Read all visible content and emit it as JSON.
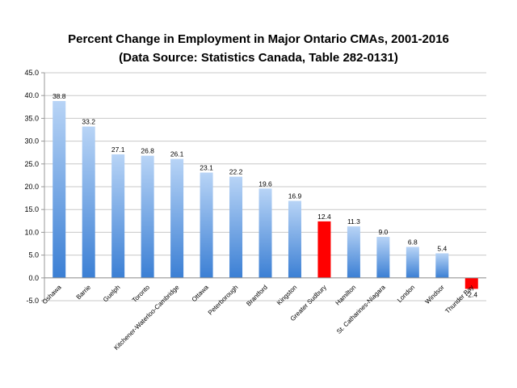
{
  "chart_data": {
    "type": "bar",
    "title": "Percent Change in Employment in Major Ontario CMAs, 2001-2016",
    "subtitle": "(Data Source: Statistics Canada, Table 282-0131)",
    "xlabel": "",
    "ylabel": "",
    "ylim": [
      -5,
      45
    ],
    "yticks": [
      "-5.0",
      "0.0",
      "5.0",
      "10.0",
      "15.0",
      "20.0",
      "25.0",
      "30.0",
      "35.0",
      "40.0",
      "45.0"
    ],
    "categories": [
      "Oshawa",
      "Barrie",
      "Guelph",
      "Toronto",
      "Kitchener-Waterloo-Cambridge",
      "Ottawa",
      "Peterborough",
      "Brantford",
      "Kingston",
      "Greater Sudbury",
      "Hamilton",
      "St. Catharines-Niagara",
      "London",
      "Windsor",
      "Thunder Bay"
    ],
    "values": [
      38.8,
      33.2,
      27.1,
      26.8,
      26.1,
      23.1,
      22.2,
      19.6,
      16.9,
      12.4,
      11.3,
      9.0,
      6.8,
      5.4,
      -2.4
    ],
    "value_labels": [
      "38.8",
      "33.2",
      "27.1",
      "26.8",
      "26.1",
      "23.1",
      "22.2",
      "19.6",
      "16.9",
      "12.4",
      "11.3",
      "9.0",
      "6.8",
      "5.4",
      "-2.4"
    ],
    "highlighted": [
      "Greater Sudbury",
      "Thunder Bay"
    ],
    "grid": true,
    "legend": "none",
    "colors": {
      "bar_top": "#b8d4f6",
      "bar_bottom": "#3b7fd4",
      "highlight": "#ff0000",
      "grid": "#c8c8c8",
      "axis": "#999999"
    }
  }
}
